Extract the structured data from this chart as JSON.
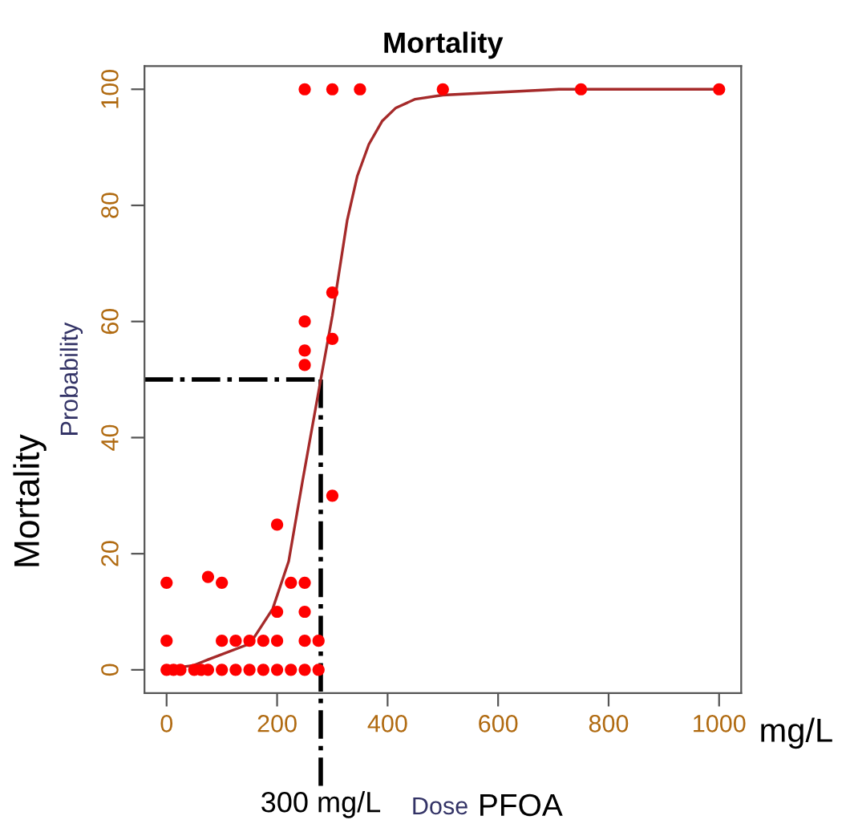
{
  "chart_data": {
    "type": "scatter",
    "title": "Mortality",
    "xlabel": "Dose",
    "ylabel": "Probability",
    "annotations": [
      "Mortality",
      "mg/L",
      "PFOA"
    ],
    "series": [
      {
        "color": "#ff0000",
        "marker": "circle",
        "x": [
          0,
          12.5,
          25,
          50,
          62.5,
          75,
          100,
          125,
          150,
          175,
          200,
          225,
          250,
          275,
          0,
          100,
          125,
          150,
          175,
          200,
          250,
          275,
          200,
          250,
          0,
          75,
          100,
          225,
          250,
          200,
          300,
          250,
          250,
          300,
          250,
          300,
          300,
          250,
          350,
          500,
          750,
          1000
        ],
        "values": [
          0,
          0,
          0,
          0,
          0,
          0,
          0,
          0,
          0,
          0,
          0,
          0,
          0,
          0,
          5,
          5,
          5,
          5,
          5,
          5,
          5,
          5,
          10,
          10,
          15,
          16,
          15,
          15,
          15,
          25,
          30,
          52.5,
          55,
          57,
          60,
          65,
          100,
          100,
          100,
          100,
          100,
          100
        ]
      },
      {
        "type": "line",
        "color": "#a52a2a",
        "marker": "none",
        "line_style": "solid",
        "x": [
          0,
          50,
          76,
          151,
          192,
          221,
          246,
          279,
          300,
          327,
          345,
          366,
          390,
          415,
          450,
          500,
          710,
          1000
        ],
        "values": [
          0.1,
          0.8,
          1.8,
          4.5,
          10.5,
          18.7,
          32.5,
          50,
          61,
          77.5,
          85,
          90.5,
          94.5,
          96.8,
          98.3,
          99,
          100,
          100
        ]
      }
    ],
    "xlim": [
      -40,
      1040
    ],
    "ylim": [
      -4,
      104
    ],
    "xticks": [
      0,
      200,
      400,
      600,
      800,
      1000
    ],
    "yticks": [
      0,
      20,
      40,
      60,
      80,
      100
    ],
    "ref_lines": [
      {
        "axis": "y",
        "value": 50,
        "color": "#000000",
        "line_style": "dashdot"
      },
      {
        "axis": "x",
        "value": 279,
        "label": "300 mg/L",
        "color": "#000000",
        "line_style": "dashdot"
      }
    ],
    "grid": false,
    "legend": false
  }
}
